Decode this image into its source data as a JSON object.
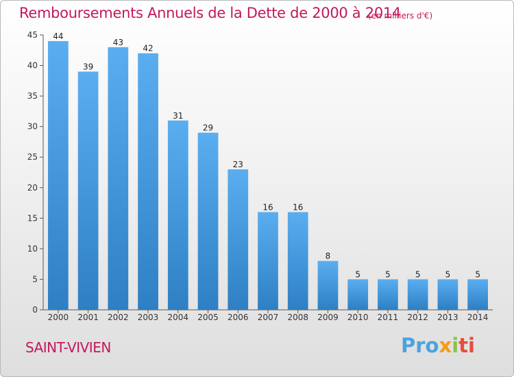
{
  "chart_data": {
    "type": "bar",
    "title": "Remboursements Annuels de la Dette de 2000 à 2014",
    "subtitle": "(en milliers d'€)",
    "categories": [
      "2000",
      "2001",
      "2002",
      "2003",
      "2004",
      "2005",
      "2006",
      "2007",
      "2008",
      "2009",
      "2010",
      "2011",
      "2012",
      "2013",
      "2014"
    ],
    "values": [
      44,
      39,
      43,
      42,
      31,
      29,
      23,
      16,
      16,
      8,
      5,
      5,
      5,
      5,
      5
    ],
    "ylim": [
      0,
      45
    ],
    "yticks": [
      0,
      5,
      10,
      15,
      20,
      25,
      30,
      35,
      40,
      45
    ],
    "grid": false,
    "bar_color": "#3d8fd8"
  },
  "footer": {
    "place": "SAINT-VIVIEN",
    "logo": [
      "Pro",
      "x",
      "i",
      "ti"
    ]
  }
}
